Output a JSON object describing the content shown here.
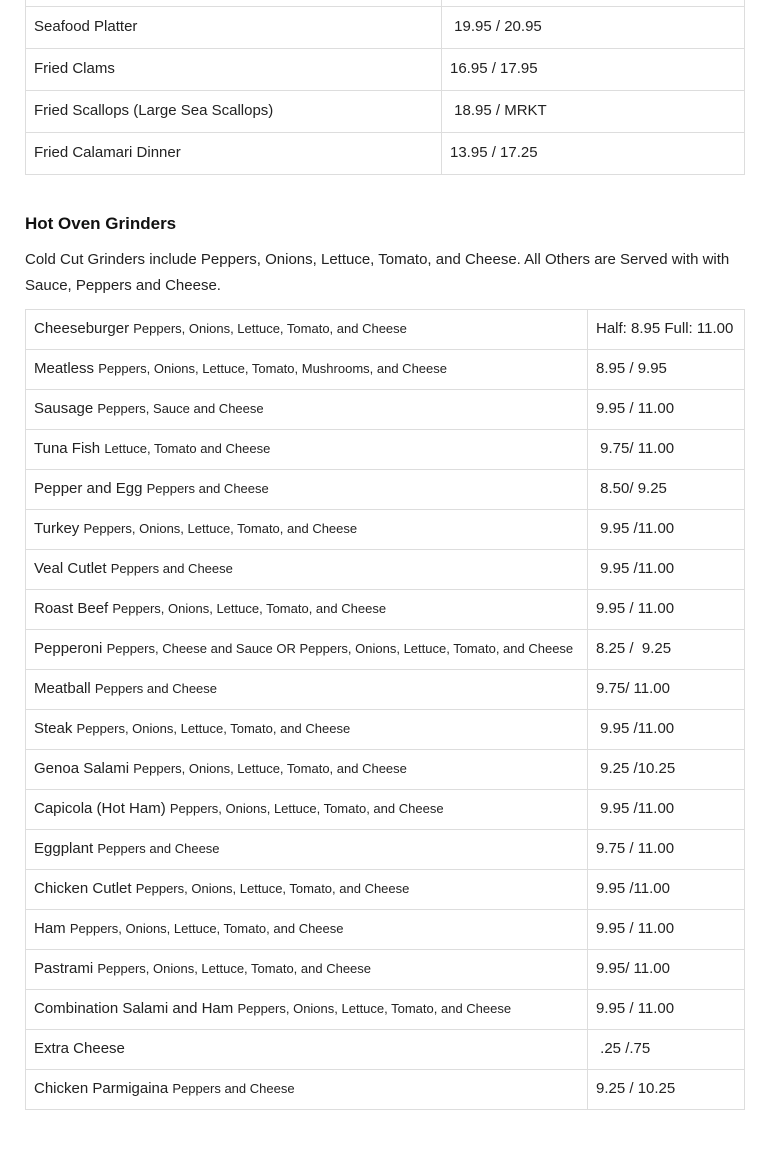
{
  "seafood": {
    "rows": [
      {
        "name": "Seafood Platter",
        "price": " 19.95 / 20.95"
      },
      {
        "name": "Fried Clams",
        "price": "16.95 / 17.95"
      },
      {
        "name": "Fried Scallops (Large Sea Scallops)",
        "price": " 18.95 / MRKT"
      },
      {
        "name": "Fried Calamari Dinner",
        "price": "13.95 / 17.25"
      }
    ]
  },
  "grinders": {
    "title": "Hot Oven Grinders",
    "intro": "Cold Cut Grinders include Peppers, Onions, Lettuce, Tomato, and Cheese. All Others are Served with with Sauce, Peppers and Cheese.",
    "rows": [
      {
        "name": "Cheeseburger",
        "desc": "Peppers, Onions, Lettuce, Tomato, and Cheese",
        "price": "Half: 8.95 Full: 11.00"
      },
      {
        "name": "Meatless",
        "desc": "Peppers, Onions, Lettuce, Tomato, Mushrooms, and Cheese",
        "price": "8.95 / 9.95"
      },
      {
        "name": "Sausage",
        "desc": "Peppers, Sauce and Cheese",
        "price": "9.95 / 11.00"
      },
      {
        "name": "Tuna Fish",
        "desc": "Lettuce, Tomato and Cheese",
        "price": " 9.75/ 11.00"
      },
      {
        "name": "Pepper and Egg",
        "desc": "Peppers and Cheese",
        "price": " 8.50/ 9.25"
      },
      {
        "name": "Turkey",
        "desc": "Peppers, Onions, Lettuce, Tomato, and Cheese",
        "price": " 9.95 /11.00"
      },
      {
        "name": "Veal Cutlet",
        "desc": "Peppers and Cheese",
        "price": " 9.95 /11.00"
      },
      {
        "name": "Roast Beef",
        "desc": "Peppers, Onions, Lettuce, Tomato, and Cheese",
        "price": "9.95 / 11.00"
      },
      {
        "name": "Pepperoni",
        "desc": "Peppers, Cheese and Sauce OR Peppers, Onions, Lettuce, Tomato, and Cheese",
        "price": "8.25 /  9.25"
      },
      {
        "name": "Meatball",
        "desc": "Peppers and Cheese",
        "price": "9.75/ 11.00"
      },
      {
        "name": "Steak",
        "desc": "Peppers, Onions, Lettuce, Tomato, and Cheese",
        "price": " 9.95 /11.00"
      },
      {
        "name": "Genoa Salami",
        "desc": "Peppers, Onions, Lettuce, Tomato, and Cheese",
        "price": " 9.25 /10.25"
      },
      {
        "name": "Capicola (Hot Ham)",
        "desc": "Peppers, Onions, Lettuce, Tomato, and Cheese",
        "price": " 9.95 /11.00"
      },
      {
        "name": "Eggplant",
        "desc": "Peppers and Cheese",
        "price": "9.75 / 11.00"
      },
      {
        "name": "Chicken Cutlet",
        "desc": "Peppers, Onions, Lettuce, Tomato, and Cheese",
        "price": "9.95 /11.00"
      },
      {
        "name": "Ham",
        "desc": "Peppers, Onions, Lettuce, Tomato, and Cheese",
        "price": "9.95 / 11.00"
      },
      {
        "name": "Pastrami",
        "desc": "Peppers, Onions, Lettuce, Tomato, and Cheese",
        "price": "9.95/ 11.00"
      },
      {
        "name": "Combination Salami and Ham",
        "desc": "Peppers, Onions, Lettuce, Tomato, and Cheese",
        "price": "9.95 / 11.00"
      },
      {
        "name": "Extra Cheese",
        "desc": "",
        "price": " .25 /.75"
      },
      {
        "name": "Chicken Parmigaina",
        "desc": "Peppers and Cheese",
        "price": "9.25 / 10.25"
      }
    ]
  }
}
